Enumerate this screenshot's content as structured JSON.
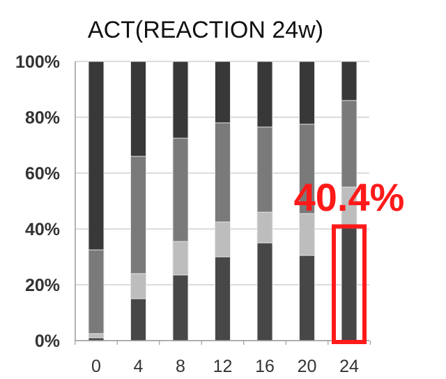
{
  "chart_data": {
    "type": "bar",
    "stacked": true,
    "title": "ACT(REACTION 24w)",
    "xlabel": "",
    "ylabel": "",
    "categories": [
      "0",
      "4",
      "8",
      "12",
      "16",
      "20",
      "24"
    ],
    "y_ticks": [
      "0%",
      "20%",
      "40%",
      "60%",
      "80%",
      "100%"
    ],
    "ylim": [
      0,
      100
    ],
    "grid": true,
    "series": [
      {
        "values": [
          1,
          15,
          23.5,
          30,
          35,
          30.5,
          40.4
        ],
        "color": "#474747"
      },
      {
        "values": [
          1.5,
          9,
          12,
          12.5,
          11,
          15,
          14.6
        ],
        "color": "#bdbdbd"
      },
      {
        "values": [
          30,
          42,
          37,
          35.5,
          30.5,
          32,
          31
        ],
        "color": "#7a7a7a"
      },
      {
        "values": [
          67.5,
          34,
          27.5,
          22,
          23.5,
          22.5,
          14
        ],
        "color": "#383838"
      }
    ],
    "annotation": {
      "text": "40.4%",
      "category": "24",
      "value": 40.4,
      "color": "#ff1a1a"
    }
  }
}
